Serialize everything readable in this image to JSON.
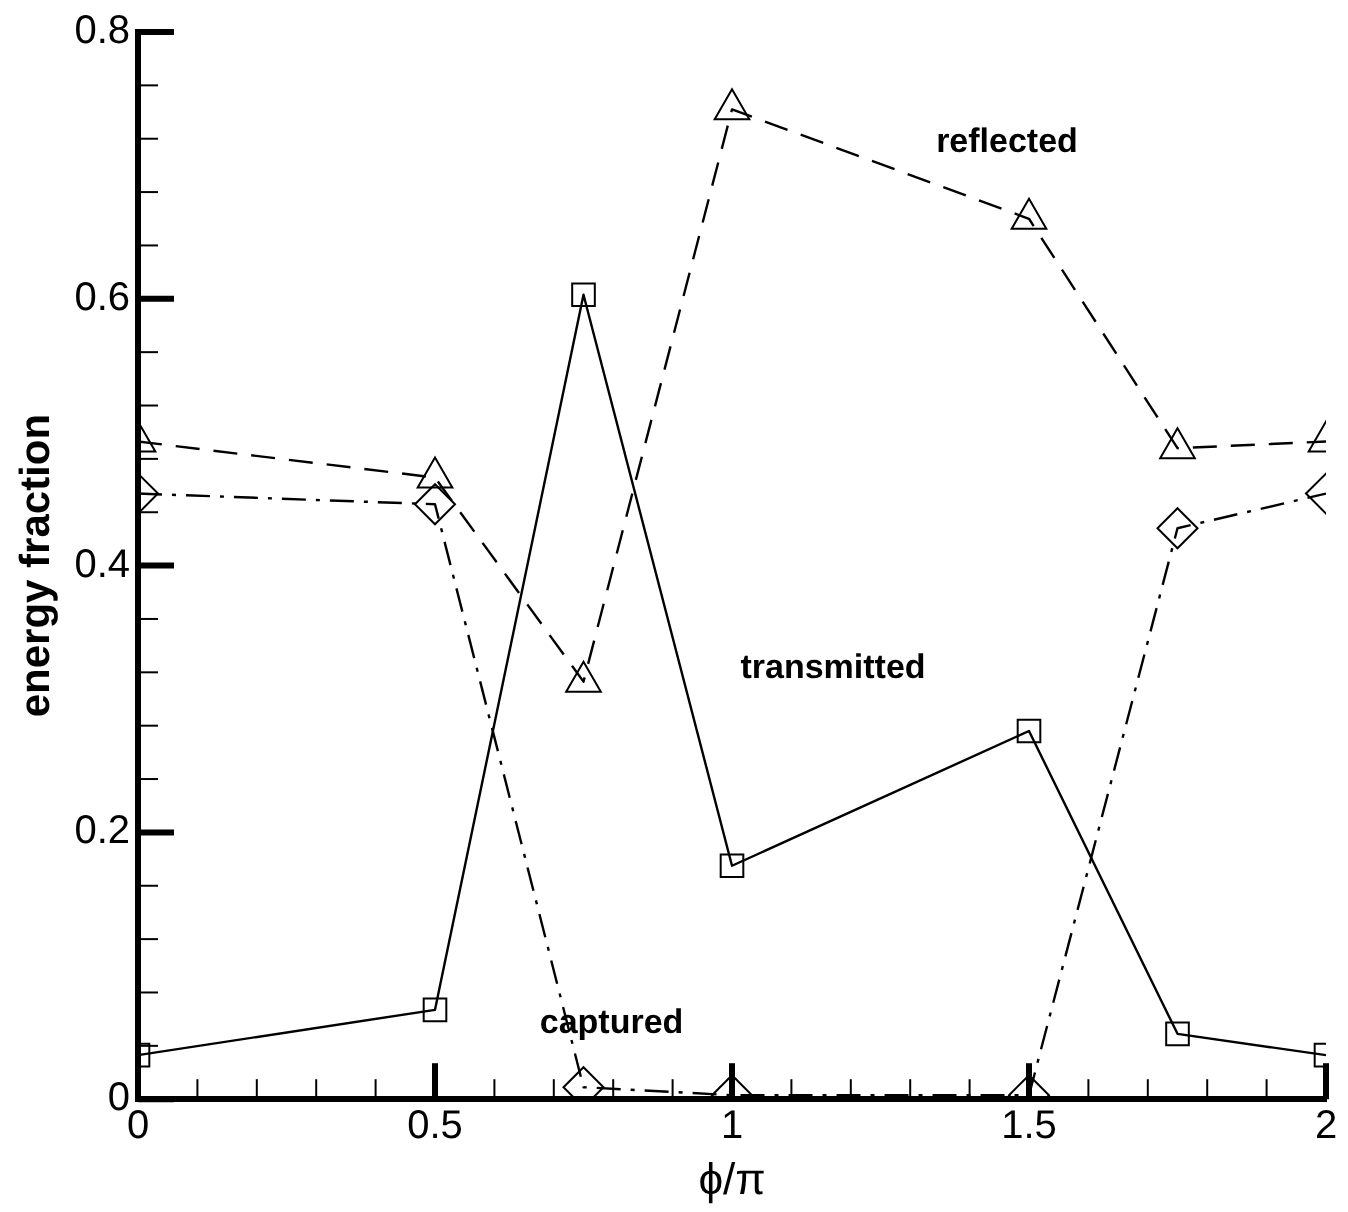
{
  "chart_data": {
    "type": "line",
    "xlabel": "ϕ/π",
    "ylabel": "energy fraction",
    "x": [
      0,
      0.5,
      0.75,
      1,
      1.5,
      1.75,
      2
    ],
    "xlim": [
      0,
      2
    ],
    "xticks": [
      0,
      {
        "value": 0.1,
        "label": null
      },
      {
        "value": 0.2,
        "label": null
      },
      {
        "value": 0.3,
        "label": null
      },
      {
        "value": 0.4,
        "label": null
      },
      0.5,
      {
        "value": 0.6,
        "label": null
      },
      {
        "value": 0.7,
        "label": null
      },
      {
        "value": 0.8,
        "label": null
      },
      {
        "value": 0.9,
        "label": null
      },
      1,
      {
        "value": 1.1,
        "label": null
      },
      {
        "value": 1.2,
        "label": null
      },
      {
        "value": 1.3,
        "label": null
      },
      {
        "value": 1.4,
        "label": null
      },
      1.5,
      {
        "value": 1.6,
        "label": null
      },
      {
        "value": 1.7,
        "label": null
      },
      {
        "value": 1.8,
        "label": null
      },
      {
        "value": 1.9,
        "label": null
      },
      2
    ],
    "ylim": [
      0,
      0.8
    ],
    "yticks": [
      0,
      {
        "value": 0.04,
        "label": null
      },
      {
        "value": 0.08,
        "label": null
      },
      {
        "value": 0.12,
        "label": null
      },
      {
        "value": 0.16,
        "label": null
      },
      0.2,
      {
        "value": 0.24,
        "label": null
      },
      {
        "value": 0.28,
        "label": null
      },
      {
        "value": 0.32,
        "label": null
      },
      {
        "value": 0.36,
        "label": null
      },
      0.4,
      {
        "value": 0.44,
        "label": null
      },
      {
        "value": 0.48,
        "label": null
      },
      {
        "value": 0.52,
        "label": null
      },
      {
        "value": 0.56,
        "label": null
      },
      0.6,
      {
        "value": 0.64,
        "label": null
      },
      {
        "value": 0.68,
        "label": null
      },
      {
        "value": 0.72,
        "label": null
      },
      {
        "value": 0.76,
        "label": null
      },
      0.8
    ],
    "grid": false,
    "legend": false,
    "series": [
      {
        "name": "reflected",
        "color": "#000000",
        "marker": "triangle",
        "line_style": "dashed",
        "values": [
          0.493,
          0.466,
          0.313,
          0.742,
          0.66,
          0.488,
          0.493
        ]
      },
      {
        "name": "transmitted",
        "color": "#000000",
        "marker": "square",
        "line_style": "solid",
        "values": [
          0.033,
          0.067,
          0.603,
          0.175,
          0.276,
          0.049,
          0.033
        ]
      },
      {
        "name": "captured",
        "color": "#000000",
        "marker": "diamond",
        "line_style": "dashdot",
        "values": [
          0.454,
          0.446,
          0.009,
          0.003,
          0.003,
          0.428,
          0.454
        ]
      }
    ]
  }
}
